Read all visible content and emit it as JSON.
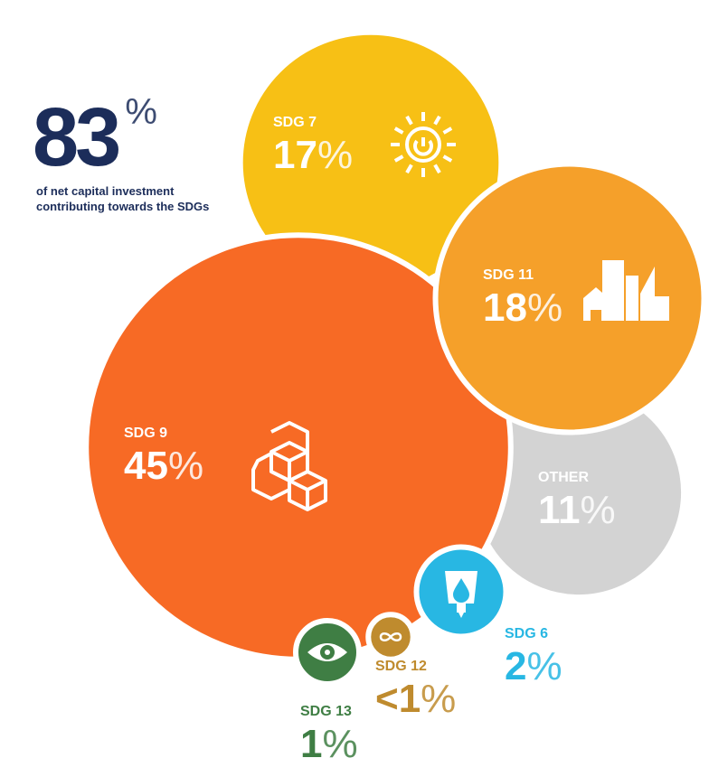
{
  "chart_data": {
    "type": "bubble",
    "total": {
      "value": 83,
      "label": "83%"
    },
    "subtitle": [
      "of net capital investment",
      "contributing towards the SDGs"
    ],
    "series": [
      {
        "name": "SDG 7",
        "color": "#f7c015",
        "values": [
          17
        ],
        "value_labels": [
          "17%"
        ]
      },
      {
        "name": "OTHER",
        "color": "#d3d3d3",
        "values": [
          11
        ],
        "value_labels": [
          "11%"
        ]
      },
      {
        "name": "SDG 9",
        "color": "#f76a25",
        "values": [
          45
        ],
        "value_labels": [
          "45%"
        ]
      },
      {
        "name": "SDG 11",
        "color": "#f5a02a",
        "values": [
          18
        ],
        "value_labels": [
          "18%"
        ]
      },
      {
        "name": "SDG 6",
        "color": "#28b7e3",
        "values": [
          2
        ],
        "value_labels": [
          "2%"
        ]
      },
      {
        "name": "SDG 12",
        "color": "#bf8b2e",
        "values": [
          0.5
        ],
        "value_labels": [
          "<1%"
        ]
      },
      {
        "name": "SDG 13",
        "color": "#3f7e44",
        "values": [
          1
        ],
        "value_labels": [
          "1%"
        ]
      }
    ]
  }
}
